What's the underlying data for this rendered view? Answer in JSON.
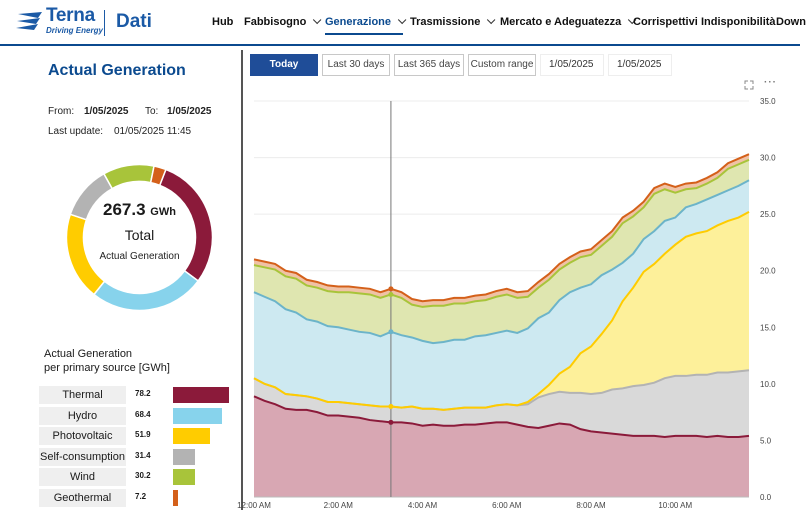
{
  "header": {
    "brand": "Terna",
    "tagline": "Driving Energy",
    "app": "Dati",
    "nav": [
      {
        "label": "Hub",
        "chevron": false,
        "active": false
      },
      {
        "label": "Fabbisogno",
        "chevron": true,
        "active": false
      },
      {
        "label": "Generazione",
        "chevron": true,
        "active": true
      },
      {
        "label": "Trasmissione",
        "chevron": true,
        "active": false
      },
      {
        "label": "Mercato e Adeguatezza",
        "chevron": true,
        "active": false
      },
      {
        "label": "Corrispettivi",
        "chevron": false,
        "active": false
      },
      {
        "label": "Indisponibilità",
        "chevron": false,
        "active": false
      },
      {
        "label": "Down",
        "chevron": false,
        "active": false
      }
    ]
  },
  "panel": {
    "title": "Actual Generation",
    "from_label": "From:",
    "from_value": "1/05/2025",
    "to_label": "To:",
    "to_value": "1/05/2025",
    "update_label": "Last  update:",
    "update_value": "01/05/2025 11:45",
    "total_value": "267.3",
    "total_unit": "GWh",
    "total_label": "Total",
    "total_sub": "Actual Generation",
    "legend_title_1": "Actual Generation",
    "legend_title_2": "per primary source [GWh]"
  },
  "sources": [
    {
      "name": "Thermal",
      "value": 78.2,
      "color": "#8b1a3a"
    },
    {
      "name": "Hydro",
      "value": 68.4,
      "color": "#87d3ec"
    },
    {
      "name": "Photovoltaic",
      "value": 51.9,
      "color": "#ffcc00"
    },
    {
      "name": "Self-consumption",
      "value": 31.4,
      "color": "#b3b3b3"
    },
    {
      "name": "Wind",
      "value": 30.2,
      "color": "#a8c43a"
    },
    {
      "name": "Geothermal",
      "value": 7.2,
      "color": "#d4601a"
    }
  ],
  "controls": {
    "buttons": [
      "Today",
      "Last 30 days",
      "Last 365 days",
      "Custom range"
    ],
    "active": "Today",
    "date_from": "1/05/2025",
    "date_to": "1/05/2025",
    "expand_icon": "expand-icon",
    "more_icon": "more-icon"
  },
  "chart_data": {
    "type": "area",
    "stacked": true,
    "title": "",
    "xlabel": "",
    "ylabel": "",
    "ylim": [
      0,
      35
    ],
    "y_ticks": [
      "0.0",
      "5.0",
      "10.0",
      "15.0",
      "20.0",
      "25.0",
      "30.0",
      "35.0"
    ],
    "x_ticks": [
      "12:00 AM",
      "2:00 AM",
      "4:00 AM",
      "6:00 AM",
      "8:00 AM",
      "10:00 AM"
    ],
    "x_tick_hours": [
      0,
      2,
      4,
      6,
      8,
      10
    ],
    "x_range_hours": [
      0,
      11.75
    ],
    "cursor_hour": 3.25,
    "x": [
      0,
      0.25,
      0.5,
      0.75,
      1,
      1.25,
      1.5,
      1.75,
      2,
      2.25,
      2.5,
      2.75,
      3,
      3.25,
      3.5,
      3.75,
      4,
      4.25,
      4.5,
      4.75,
      5,
      5.25,
      5.5,
      5.75,
      6,
      6.25,
      6.5,
      6.75,
      7,
      7.25,
      7.5,
      7.75,
      8,
      8.25,
      8.5,
      8.75,
      9,
      9.25,
      9.5,
      9.75,
      10,
      10.25,
      10.5,
      10.75,
      11,
      11.25,
      11.5,
      11.75
    ],
    "series": [
      {
        "name": "Thermal",
        "color": "#8b1a3a",
        "fill": "#d8a7b3",
        "values": [
          8.9,
          8.5,
          8.2,
          7.8,
          7.7,
          7.7,
          7.5,
          7.2,
          7.2,
          7.1,
          7.0,
          6.8,
          6.7,
          6.6,
          6.6,
          6.5,
          6.3,
          6.4,
          6.3,
          6.3,
          6.4,
          6.4,
          6.5,
          6.6,
          6.6,
          6.4,
          6.2,
          6.1,
          6.3,
          6.5,
          6.4,
          6.0,
          5.8,
          5.7,
          5.6,
          5.5,
          5.4,
          5.4,
          5.4,
          5.3,
          5.4,
          5.4,
          5.4,
          5.3,
          5.4,
          5.3,
          5.3,
          5.4
        ]
      },
      {
        "name": "Self-consumption",
        "color": "#b3b3b3",
        "fill": "#d9d9d9",
        "values": [
          1.6,
          1.5,
          1.5,
          1.3,
          1.3,
          1.2,
          1.2,
          1.2,
          1.2,
          1.2,
          1.2,
          1.3,
          1.3,
          1.4,
          1.3,
          1.5,
          1.5,
          1.4,
          1.4,
          1.5,
          1.5,
          1.5,
          1.4,
          1.5,
          1.6,
          1.7,
          2.0,
          2.7,
          2.8,
          2.8,
          2.8,
          3.2,
          3.3,
          3.5,
          3.9,
          4.1,
          4.4,
          4.5,
          4.7,
          5.2,
          5.3,
          5.3,
          5.4,
          5.5,
          5.6,
          5.7,
          5.8,
          5.8
        ]
      },
      {
        "name": "Photovoltaic",
        "color": "#ffcc00",
        "fill": "#fdf09a",
        "values": [
          0,
          0,
          0,
          0,
          0,
          0,
          0,
          0,
          0,
          0,
          0,
          0,
          0,
          0,
          0,
          0,
          0,
          0,
          0,
          0,
          0,
          0,
          0,
          0,
          0,
          0,
          0.2,
          0.3,
          0.8,
          1.6,
          2.3,
          3.5,
          4.2,
          5.2,
          6.1,
          7.7,
          8.7,
          10.0,
          10.5,
          11.0,
          11.6,
          12.3,
          12.5,
          12.7,
          13.0,
          13.4,
          13.6,
          14.0
        ]
      },
      {
        "name": "Hydro",
        "color": "#6cb4c9",
        "fill": "#cde9f1",
        "values": [
          7.6,
          7.7,
          7.6,
          7.5,
          7.3,
          6.8,
          6.8,
          6.7,
          6.6,
          6.5,
          6.4,
          6.4,
          6.2,
          6.6,
          6.4,
          6.1,
          6.0,
          5.8,
          6.0,
          6.1,
          6.0,
          6.3,
          6.4,
          6.4,
          6.5,
          6.4,
          6.5,
          6.7,
          6.4,
          6.5,
          6.6,
          5.8,
          5.5,
          5.2,
          4.5,
          3.4,
          3.0,
          2.9,
          2.9,
          2.9,
          2.4,
          2.6,
          2.6,
          2.8,
          2.7,
          2.7,
          2.8,
          2.8
        ]
      },
      {
        "name": "Wind",
        "color": "#a8c43a",
        "fill": "#dfe6b0",
        "values": [
          2.4,
          2.6,
          2.8,
          2.9,
          3.0,
          3.0,
          3.0,
          3.1,
          3.1,
          3.3,
          3.4,
          3.4,
          3.4,
          3.3,
          3.3,
          2.9,
          3.0,
          3.3,
          3.2,
          3.2,
          3.2,
          3.1,
          3.1,
          3.2,
          3.2,
          3.1,
          2.8,
          2.7,
          2.9,
          2.7,
          2.6,
          2.7,
          2.6,
          2.6,
          2.9,
          3.5,
          3.3,
          2.8,
          3.3,
          2.8,
          2.2,
          1.6,
          1.4,
          1.4,
          1.5,
          1.9,
          1.9,
          1.8
        ]
      },
      {
        "name": "Geothermal",
        "color": "#d4601a",
        "fill": "#f0c2a6",
        "values": [
          0.5,
          0.5,
          0.5,
          0.5,
          0.5,
          0.5,
          0.5,
          0.5,
          0.5,
          0.5,
          0.5,
          0.5,
          0.5,
          0.5,
          0.5,
          0.5,
          0.5,
          0.5,
          0.5,
          0.5,
          0.5,
          0.5,
          0.5,
          0.5,
          0.5,
          0.5,
          0.5,
          0.5,
          0.5,
          0.5,
          0.5,
          0.5,
          0.5,
          0.5,
          0.5,
          0.5,
          0.5,
          0.5,
          0.5,
          0.5,
          0.5,
          0.5,
          0.5,
          0.5,
          0.5,
          0.5,
          0.5,
          0.5
        ]
      }
    ]
  }
}
